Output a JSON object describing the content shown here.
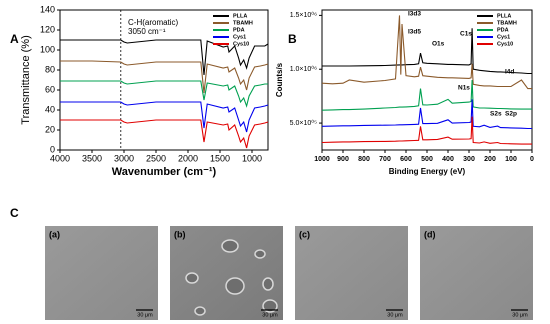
{
  "chart_data": [
    {
      "type": "line",
      "panel_label": "A",
      "x_label": "Wavenumber (cm⁻¹)",
      "y_label": "Transmittance (%)",
      "x": [
        4000,
        3500,
        3050,
        3000,
        2950,
        2500,
        2000,
        1800,
        1750,
        1700,
        1450,
        1380,
        1360,
        1270,
        1210,
        1180,
        1130,
        1085,
        1045,
        960,
        870,
        800,
        750
      ],
      "xlim": [
        4000,
        750
      ],
      "xticks": [
        4000,
        3500,
        3000,
        2500,
        2000,
        1500,
        1000
      ],
      "ylim": [
        0,
        140
      ],
      "yticks": [
        0,
        20,
        40,
        60,
        80,
        100,
        120,
        140
      ],
      "reference_line_x": 3050,
      "annotations": [
        "C-H(aromatic)",
        "3050 cm⁻¹"
      ],
      "legend": "upper right",
      "series": [
        {
          "name": "PLLA",
          "color": "#000000",
          "values": [
            110,
            110,
            110,
            108,
            107,
            110,
            110,
            110,
            75,
            109,
            103,
            104,
            98,
            104,
            92,
            85,
            90,
            82,
            92,
            104,
            104,
            104,
            106
          ]
        },
        {
          "name": "TBAMH",
          "color": "#8b5a2b",
          "values": [
            89,
            89,
            88,
            86,
            85,
            88,
            88,
            88,
            57,
            86,
            82,
            83,
            78,
            82,
            72,
            66,
            70,
            60,
            72,
            83,
            84,
            85,
            86
          ]
        },
        {
          "name": "PDA",
          "color": "#00a050",
          "values": [
            69,
            69,
            69,
            67,
            66,
            69,
            69,
            69,
            50,
            67,
            64,
            65,
            60,
            64,
            54,
            48,
            52,
            44,
            54,
            64,
            65,
            66,
            66
          ]
        },
        {
          "name": "Cys1",
          "color": "#0000ee",
          "values": [
            48,
            48,
            48,
            46,
            45,
            48,
            48,
            48,
            22,
            46,
            42,
            43,
            38,
            42,
            30,
            24,
            28,
            18,
            30,
            42,
            43,
            44,
            45
          ]
        },
        {
          "name": "Cys10",
          "color": "#e00000",
          "values": [
            30,
            30,
            30,
            28,
            27,
            30,
            30,
            30,
            8,
            28,
            25,
            26,
            20,
            25,
            14,
            8,
            12,
            2,
            14,
            25,
            26,
            27,
            28
          ]
        }
      ]
    },
    {
      "type": "line",
      "panel_label": "B",
      "x_label": "Binding Energy (eV)",
      "y_label": "Counts/s",
      "x": [
        1000,
        950,
        900,
        870,
        800,
        700,
        650,
        631,
        625,
        619,
        600,
        560,
        540,
        531,
        520,
        500,
        450,
        400,
        380,
        300,
        290,
        285,
        280,
        250,
        228,
        200,
        164,
        150,
        100,
        50,
        20,
        0
      ],
      "xlim": [
        1000,
        0
      ],
      "xticks": [
        1000,
        900,
        800,
        700,
        600,
        500,
        400,
        300,
        200,
        100,
        0
      ],
      "ylim": [
        250000,
        1550000
      ],
      "yticks": [
        {
          "value": 500000,
          "label": "5.0×10⁰⁵"
        },
        {
          "value": 1000000,
          "label": "1.0×10⁰⁶"
        },
        {
          "value": 1500000,
          "label": "1.5×10⁰⁶"
        }
      ],
      "annotations": [
        "I3d3",
        "I3d5",
        "O1s",
        "C1s",
        "N1s",
        "I4d",
        "S2s",
        "S2p"
      ],
      "legend": "upper right",
      "series": [
        {
          "name": "PLLA",
          "color": "#000000",
          "values": [
            1030000,
            1030000,
            1030000,
            1030000,
            1032000,
            1035000,
            1038000,
            1040000,
            1040000,
            1040000,
            1042000,
            1045000,
            1050000,
            1150000,
            1060000,
            1055000,
            1050000,
            1045000,
            1045000,
            1040000,
            1050000,
            1380000,
            1000000,
            990000,
            985000,
            980000,
            975000,
            975000,
            970000,
            965000,
            960000,
            960000
          ]
        },
        {
          "name": "TBAMH",
          "color": "#8b5a2b",
          "values": [
            870000,
            865000,
            870000,
            900000,
            880000,
            895000,
            910000,
            1500000,
            950000,
            1420000,
            940000,
            930000,
            935000,
            1020000,
            940000,
            935000,
            925000,
            920000,
            920000,
            915000,
            920000,
            1050000,
            860000,
            850000,
            845000,
            845000,
            840000,
            840000,
            840000,
            900000,
            820000,
            820000
          ]
        },
        {
          "name": "PDA",
          "color": "#00a050",
          "values": [
            620000,
            622000,
            625000,
            625000,
            630000,
            640000,
            645000,
            648000,
            648000,
            648000,
            650000,
            655000,
            660000,
            820000,
            670000,
            668000,
            675000,
            720000,
            685000,
            695000,
            700000,
            900000,
            650000,
            640000,
            640000,
            638000,
            635000,
            635000,
            632000,
            630000,
            630000,
            630000
          ]
        },
        {
          "name": "Cys1",
          "color": "#0000ee",
          "values": [
            470000,
            472000,
            475000,
            475000,
            478000,
            480000,
            482000,
            484000,
            484000,
            484000,
            485000,
            488000,
            490000,
            640000,
            495000,
            495000,
            498000,
            530000,
            500000,
            505000,
            510000,
            720000,
            470000,
            465000,
            480000,
            460000,
            472000,
            458000,
            455000,
            452000,
            450000,
            450000
          ]
        },
        {
          "name": "Cys10",
          "color": "#e00000",
          "values": [
            320000,
            322000,
            325000,
            325000,
            328000,
            330000,
            332000,
            334000,
            334000,
            334000,
            335000,
            338000,
            340000,
            470000,
            345000,
            345000,
            348000,
            370000,
            350000,
            352000,
            355000,
            560000,
            320000,
            315000,
            325000,
            312000,
            320000,
            310000,
            308000,
            305000,
            305000,
            305000
          ]
        }
      ]
    }
  ],
  "sem_panel": {
    "label": "C",
    "images": [
      {
        "label": "(a)",
        "scale": "30 μm"
      },
      {
        "label": "(b)",
        "scale": "30 μm"
      },
      {
        "label": "(c)",
        "scale": "30 μm"
      },
      {
        "label": "(d)",
        "scale": "30 μm"
      }
    ]
  }
}
